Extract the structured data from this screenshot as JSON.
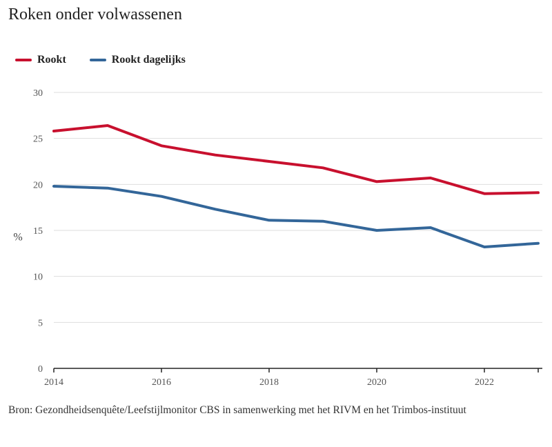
{
  "title": "Roken onder volwassenen",
  "source": "Bron: Gezondheidsenquête/Leefstijlmonitor CBS in samenwerking met het RIVM en het Trimbos-instituut",
  "colors": {
    "rookt": "#c8102e",
    "rookt_dagelijks": "#336699"
  },
  "chart_data": {
    "type": "line",
    "title": "Roken onder volwassenen",
    "ylabel": "%",
    "xlabel": "",
    "x": [
      2014,
      2015,
      2016,
      2017,
      2018,
      2019,
      2020,
      2021,
      2022,
      2023
    ],
    "xticks": [
      "2014",
      "2016",
      "2018",
      "2020",
      "2022"
    ],
    "yticks": [
      "0",
      "5",
      "10",
      "15",
      "20",
      "25",
      "30"
    ],
    "ylim": [
      0,
      30
    ],
    "xlim": [
      2014,
      2023
    ],
    "grid": true,
    "legend_position": "top-left",
    "series": [
      {
        "name": "Rookt",
        "color": "#c8102e",
        "values": [
          25.8,
          26.4,
          24.2,
          23.2,
          22.5,
          21.8,
          20.3,
          20.7,
          19.0,
          19.1
        ]
      },
      {
        "name": "Rookt dagelijks",
        "color": "#336699",
        "values": [
          19.8,
          19.6,
          18.7,
          17.3,
          16.1,
          16.0,
          15.0,
          15.3,
          13.2,
          13.6
        ]
      }
    ]
  }
}
